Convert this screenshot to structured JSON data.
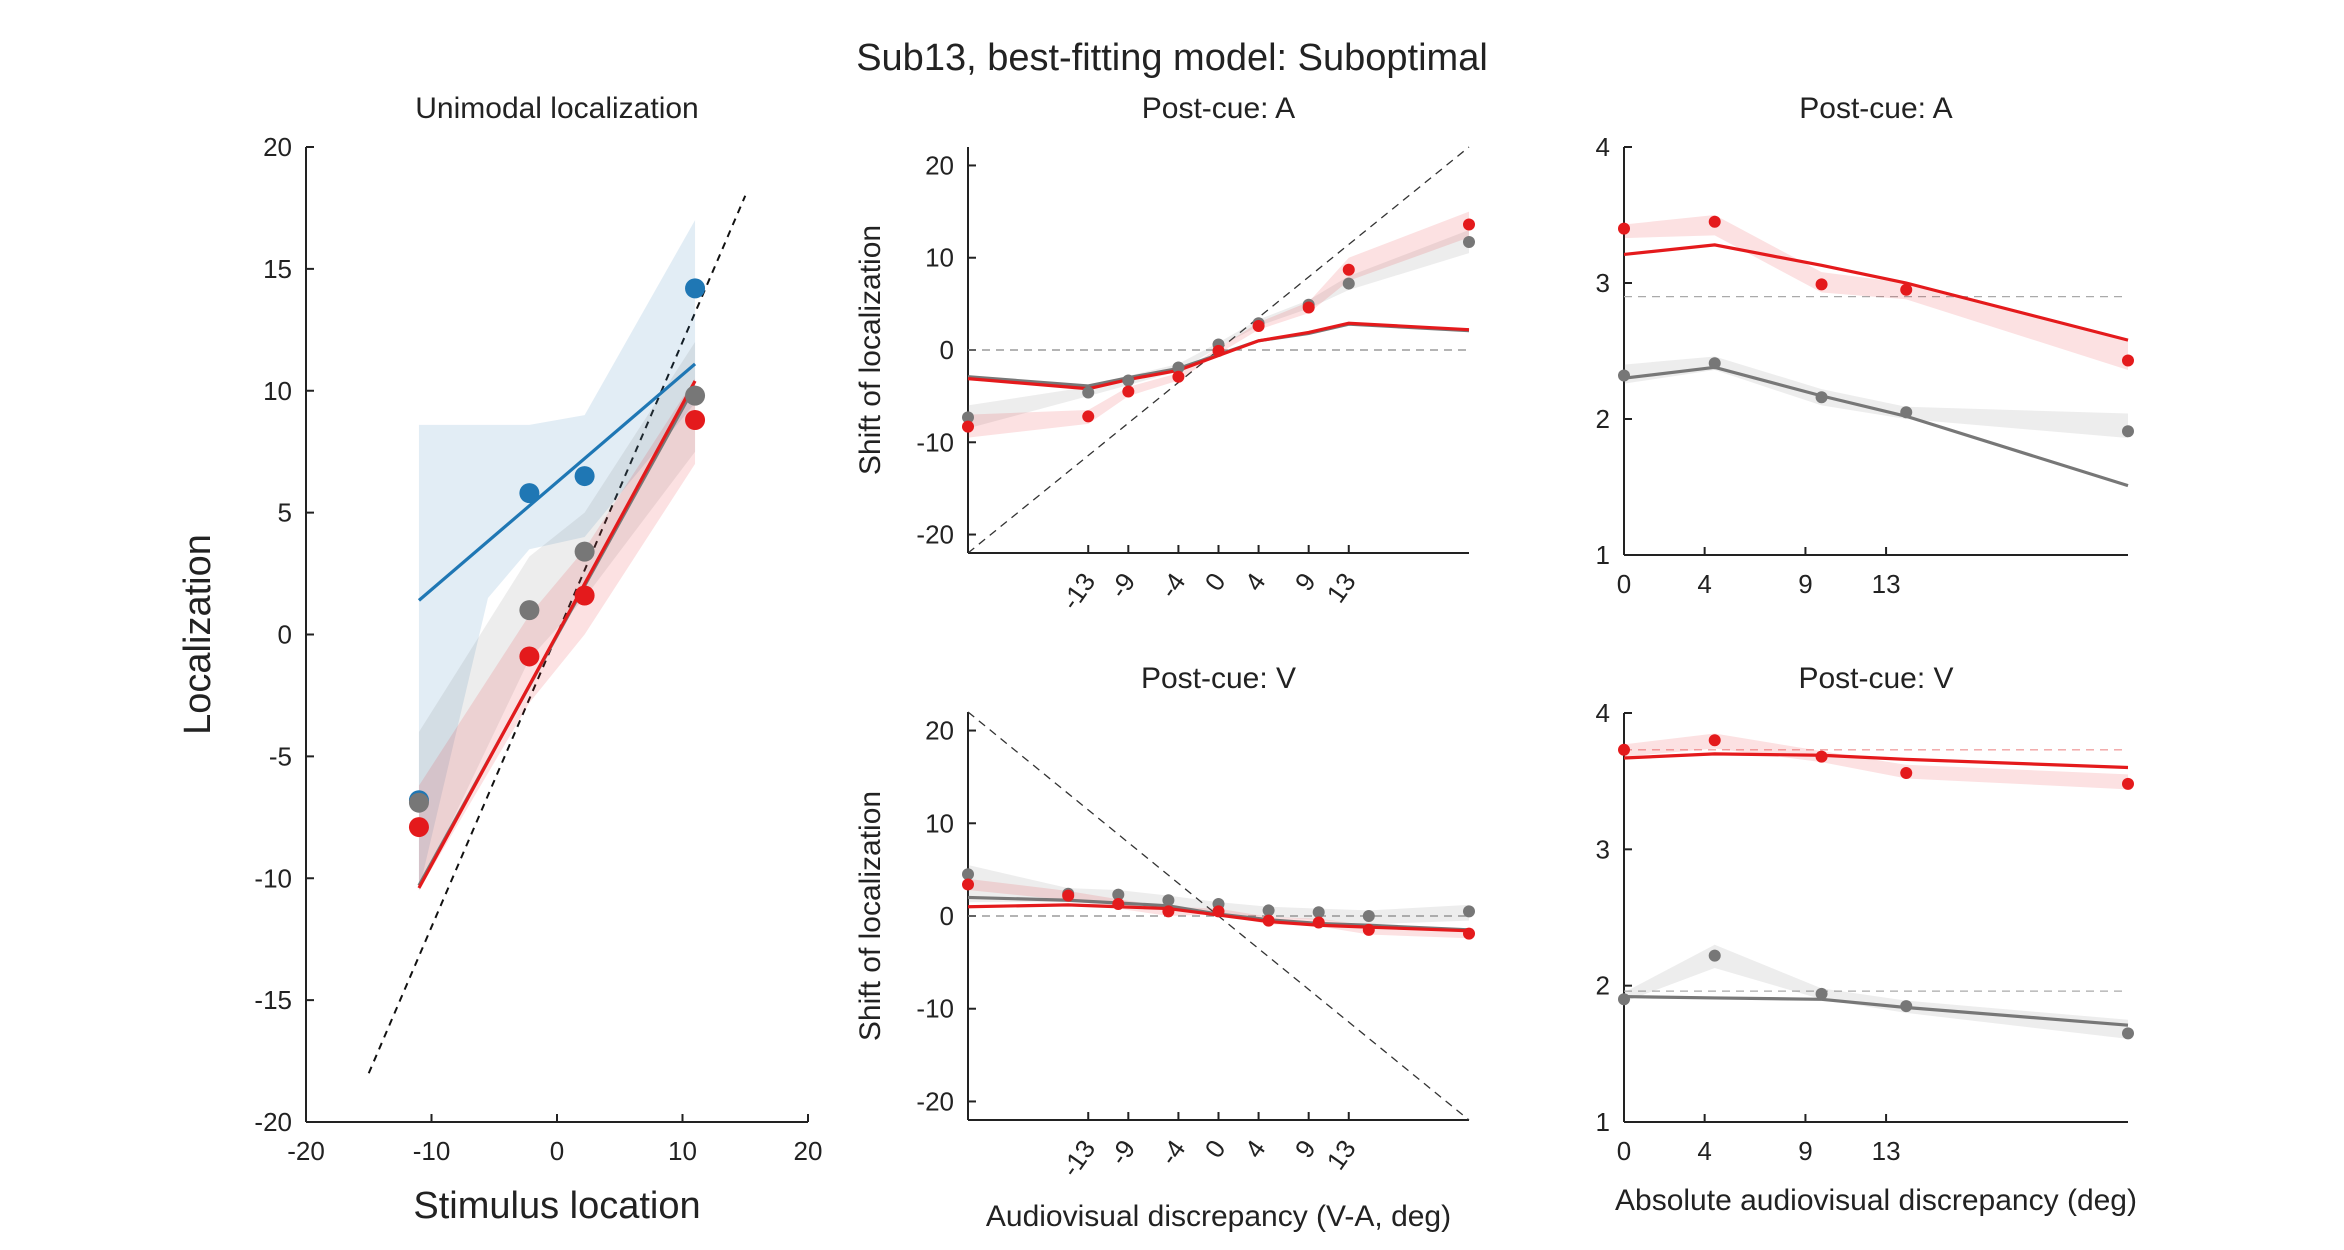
{
  "figure": {
    "title": "Sub13, best-fitting model: Suboptimal"
  },
  "colors": {
    "visual": "#1f77b4",
    "red": "#e41a1c",
    "gray": "#777777",
    "axis": "#222222"
  },
  "chart_data": [
    {
      "id": "unimodal",
      "type": "scatter",
      "title": "Unimodal localization",
      "xlabel": "Stimulus location",
      "ylabel": "Localization",
      "xlim": [
        -20,
        20
      ],
      "ylim": [
        -20,
        20
      ],
      "xticks": [
        -20,
        -10,
        0,
        10,
        20
      ],
      "yticks": [
        -20,
        -15,
        -10,
        -5,
        0,
        5,
        10,
        15,
        20
      ],
      "identity_line": {
        "x": [
          -15,
          15
        ],
        "y": [
          -18,
          18
        ]
      },
      "series": [
        {
          "color": "visual",
          "points": [
            [
              -11,
              -6.8
            ],
            [
              -2.2,
              5.8
            ],
            [
              2.2,
              6.5
            ],
            [
              11,
              14.2
            ]
          ],
          "fit": [
            [
              -11,
              1.4
            ],
            [
              11,
              11.1
            ]
          ],
          "band_upper": [
            [
              -11,
              8.6
            ],
            [
              -5.5,
              8.6
            ],
            [
              -2.2,
              8.6
            ],
            [
              2.2,
              9.0
            ],
            [
              11,
              17.0
            ]
          ],
          "band_lower": [
            [
              -11,
              -10.5
            ],
            [
              -5.5,
              1.5
            ],
            [
              -2.2,
              3.5
            ],
            [
              2.2,
              4.0
            ],
            [
              11,
              9.5
            ]
          ]
        },
        {
          "color": "gray",
          "points": [
            [
              -11,
              -6.9
            ],
            [
              -2.2,
              1.0
            ],
            [
              2.2,
              3.4
            ],
            [
              11,
              9.8
            ]
          ],
          "fit": [
            [
              -11,
              -10.3
            ],
            [
              11,
              10.2
            ]
          ],
          "band_upper": [
            [
              -11,
              -4.0
            ],
            [
              -2.2,
              3.2
            ],
            [
              2.2,
              5.0
            ],
            [
              11,
              12.0
            ]
          ],
          "band_lower": [
            [
              -11,
              -10.5
            ],
            [
              -2.2,
              -1.0
            ],
            [
              2.2,
              1.5
            ],
            [
              11,
              7.5
            ]
          ]
        },
        {
          "color": "red",
          "points": [
            [
              -11,
              -7.9
            ],
            [
              -2.2,
              -0.9
            ],
            [
              2.2,
              1.6
            ],
            [
              11,
              8.8
            ]
          ],
          "fit": [
            [
              -11,
              -10.4
            ],
            [
              11,
              10.4
            ]
          ],
          "band_upper": [
            [
              -11,
              -6.2
            ],
            [
              -2.2,
              0.8
            ],
            [
              2.2,
              3.5
            ],
            [
              11,
              10.5
            ]
          ],
          "band_lower": [
            [
              -11,
              -10.5
            ],
            [
              -2.2,
              -2.8
            ],
            [
              2.2,
              0.0
            ],
            [
              11,
              7.0
            ]
          ]
        }
      ]
    },
    {
      "id": "postcue-a-shift",
      "type": "line",
      "title": "Post-cue: A",
      "xlabel": "",
      "ylabel": "Shift of localization",
      "xlim": [
        -25,
        25
      ],
      "ylim": [
        -22,
        22
      ],
      "xticks": [
        -13,
        -9,
        -4,
        0,
        4,
        9,
        13
      ],
      "xtick_labels": [
        "-13",
        "-9",
        "-4",
        "0",
        "4",
        "9",
        "13"
      ],
      "yticks": [
        -20,
        -10,
        0,
        10,
        20
      ],
      "diagonal": {
        "x": [
          -25,
          25
        ],
        "y": [
          -22,
          22
        ]
      },
      "zero_line": 0,
      "x": [
        -25,
        -13,
        -9,
        -4,
        0,
        4,
        9,
        13,
        25
      ],
      "series": [
        {
          "color": "gray",
          "points": [
            -7.3,
            -4.6,
            -3.3,
            -1.9,
            0.6,
            2.9,
            4.9,
            7.2,
            11.7
          ],
          "fit": [
            -2.9,
            -3.9,
            -3.0,
            -2.0,
            -0.5,
            1.0,
            1.8,
            2.8,
            2.1
          ],
          "band_upper": [
            -6.0,
            -4.0,
            -2.8,
            -1.5,
            0.8,
            3.3,
            5.4,
            8.0,
            13.0
          ],
          "band_lower": [
            -8.5,
            -5.0,
            -3.8,
            -2.3,
            0.3,
            2.6,
            4.5,
            6.5,
            10.5
          ]
        },
        {
          "color": "red",
          "points": [
            -8.3,
            -7.2,
            -4.5,
            -2.9,
            -0.1,
            2.6,
            4.6,
            8.7,
            13.6
          ],
          "fit": [
            -3.1,
            -4.2,
            -3.2,
            -2.2,
            -0.6,
            1.0,
            1.9,
            2.9,
            2.2
          ],
          "band_upper": [
            -7.0,
            -6.5,
            -4.0,
            -2.5,
            0.2,
            3.0,
            5.2,
            10.0,
            15.0
          ],
          "band_lower": [
            -9.5,
            -8.0,
            -5.0,
            -3.3,
            -0.4,
            2.2,
            4.0,
            7.5,
            12.2
          ]
        }
      ]
    },
    {
      "id": "postcue-a-abs",
      "type": "line",
      "title": "Post-cue: A",
      "xlabel": "",
      "ylabel": "",
      "xlim": [
        0,
        25
      ],
      "ylim": [
        1,
        4
      ],
      "xticks": [
        0,
        4,
        9,
        13
      ],
      "yticks": [
        1,
        2,
        3,
        4
      ],
      "reference_line": 2.9,
      "x": [
        0,
        4.5,
        9.8,
        14,
        25
      ],
      "point_x": [
        0,
        4.5,
        9.8,
        14,
        25
      ],
      "series": [
        {
          "color": "red",
          "points": [
            3.4,
            3.45,
            2.99,
            2.95,
            2.43
          ],
          "fit": [
            3.21,
            3.28,
            3.13,
            3.0,
            2.58
          ],
          "band_upper": [
            3.43,
            3.5,
            3.08,
            3.0,
            2.58
          ],
          "band_lower": [
            3.33,
            3.35,
            2.93,
            2.88,
            2.36
          ]
        },
        {
          "color": "gray",
          "points": [
            2.32,
            2.41,
            2.16,
            2.05,
            1.91
          ],
          "fit": [
            2.3,
            2.38,
            2.17,
            2.02,
            1.51
          ],
          "band_upper": [
            2.4,
            2.46,
            2.22,
            2.09,
            2.04
          ],
          "band_lower": [
            2.26,
            2.36,
            2.1,
            2.0,
            1.86
          ]
        }
      ]
    },
    {
      "id": "postcue-v-shift",
      "type": "line",
      "title": "Post-cue: V",
      "xlabel": "Audiovisual discrepancy (V-A, deg)",
      "ylabel": "Shift of localization",
      "xlim": [
        -25,
        25
      ],
      "ylim": [
        -22,
        22
      ],
      "xticks": [
        -13,
        -9,
        -4,
        0,
        4,
        9,
        13
      ],
      "xtick_labels": [
        "-13",
        "-9",
        "-4",
        "0",
        "4",
        "9",
        "13"
      ],
      "yticks": [
        -20,
        -10,
        0,
        10,
        20
      ],
      "diagonal": {
        "x": [
          -25,
          25
        ],
        "y": [
          22,
          -22
        ]
      },
      "zero_line": 0,
      "x": [
        -25,
        -15,
        -10,
        -5,
        0,
        5,
        10,
        15,
        25
      ],
      "series": [
        {
          "color": "gray",
          "points": [
            4.5,
            2.4,
            2.3,
            1.7,
            1.3,
            0.6,
            0.4,
            0.0,
            0.5
          ],
          "fit": [
            2.0,
            1.7,
            1.4,
            1.1,
            0.2,
            -0.4,
            -0.8,
            -1.0,
            -1.5
          ],
          "band_upper": [
            5.5,
            3.0,
            2.8,
            2.2,
            1.5,
            1.0,
            0.8,
            0.6,
            1.2
          ],
          "band_lower": [
            1.5,
            1.5,
            1.4,
            1.0,
            0.2,
            -0.1,
            -0.4,
            -0.9,
            -0.5
          ]
        },
        {
          "color": "red",
          "points": [
            3.4,
            2.2,
            1.3,
            0.5,
            0.5,
            -0.5,
            -0.7,
            -1.5,
            -1.9
          ],
          "fit": [
            1.0,
            1.2,
            1.0,
            0.8,
            0.1,
            -0.6,
            -1.0,
            -1.2,
            -1.6
          ],
          "band_upper": [
            4.0,
            2.7,
            1.8,
            1.0,
            0.8,
            -0.1,
            -0.3,
            -1.0,
            -1.4
          ],
          "band_lower": [
            2.8,
            1.7,
            0.8,
            0.0,
            0.2,
            -0.9,
            -1.1,
            -2.0,
            -2.4
          ]
        }
      ]
    },
    {
      "id": "postcue-v-abs",
      "type": "line",
      "title": "Post-cue: V",
      "xlabel": "Absolute audiovisual discrepancy (deg)",
      "ylabel": "",
      "xlim": [
        0,
        25
      ],
      "ylim": [
        1,
        4
      ],
      "xticks": [
        0,
        4,
        9,
        13
      ],
      "yticks": [
        1,
        2,
        3,
        4
      ],
      "reference_lines": [
        3.73,
        1.96
      ],
      "x": [
        0,
        4.5,
        9.8,
        14,
        25
      ],
      "series": [
        {
          "color": "red",
          "points": [
            3.73,
            3.8,
            3.68,
            3.56,
            3.48
          ],
          "fit": [
            3.67,
            3.7,
            3.69,
            3.66,
            3.6
          ],
          "band_upper": [
            3.77,
            3.85,
            3.72,
            3.62,
            3.55
          ],
          "band_lower": [
            3.68,
            3.74,
            3.64,
            3.52,
            3.44
          ]
        },
        {
          "color": "gray",
          "points": [
            1.9,
            2.22,
            1.94,
            1.85,
            1.65
          ],
          "fit": [
            1.92,
            1.91,
            1.9,
            1.84,
            1.71
          ],
          "band_upper": [
            1.95,
            2.3,
            1.98,
            1.89,
            1.75
          ],
          "band_lower": [
            1.88,
            2.13,
            1.9,
            1.8,
            1.61
          ]
        }
      ]
    }
  ]
}
